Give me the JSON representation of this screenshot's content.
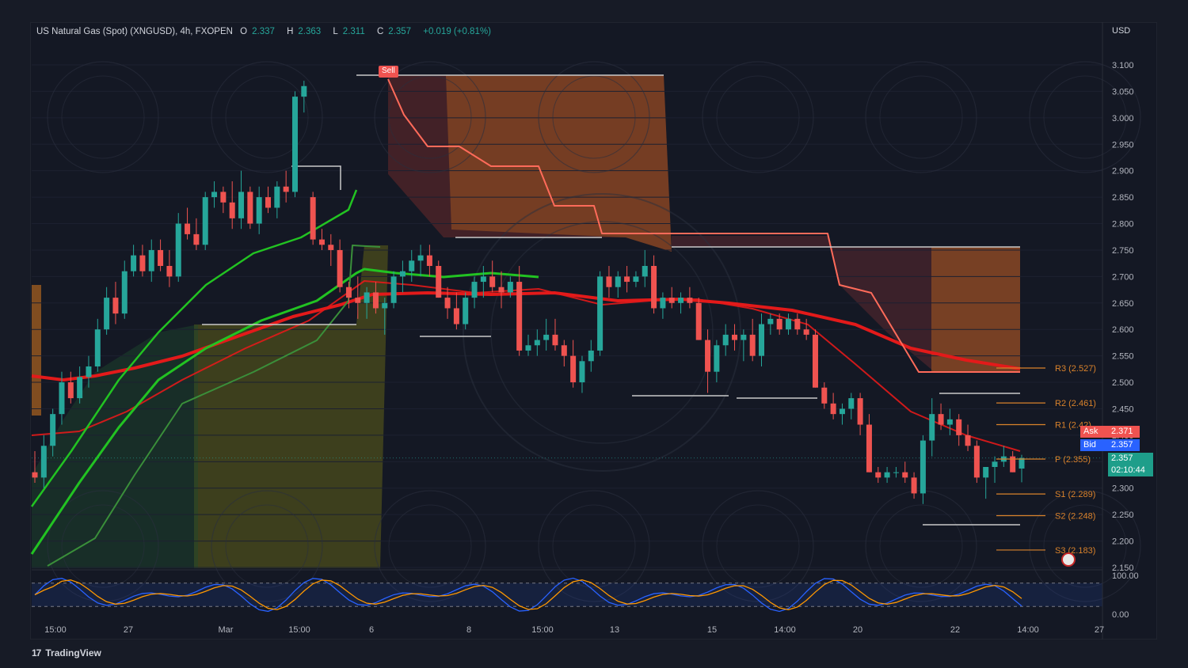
{
  "header": {
    "symbol": "US Natural Gas (Spot) (XNGUSD), 4h, FXOPEN",
    "open_label": "O",
    "open": "2.337",
    "high_label": "H",
    "high": "2.363",
    "low_label": "L",
    "low": "2.311",
    "close_label": "C",
    "close": "2.357",
    "change": "+0.019 (+0.81%)"
  },
  "unit": "USD",
  "footer": {
    "logo_mark": "17",
    "logo_text": "TradingView"
  },
  "tags": {
    "ask_label": "Ask",
    "ask": "2.371",
    "bid_label": "Bid",
    "bid": "2.357",
    "last": "2.357",
    "countdown": "02:10:44",
    "sell": "Sell"
  },
  "colors": {
    "up": "#26a69a",
    "down": "#ef5350",
    "background": "#141824",
    "ema_green": "#22c322",
    "ema_red": "#e31a1a",
    "pivot": "#d9822b",
    "stoch_k": "#2962ff",
    "stoch_d": "#ff9800"
  },
  "chart_data": {
    "type": "candlestick",
    "y_ticks": [
      "3.100",
      "3.050",
      "3.000",
      "2.950",
      "2.900",
      "2.850",
      "2.800",
      "2.750",
      "2.700",
      "2.650",
      "2.600",
      "2.550",
      "2.500",
      "2.450",
      "2.400",
      "2.350",
      "2.300",
      "2.250",
      "2.200",
      "2.150"
    ],
    "ylim": [
      2.14,
      3.14
    ],
    "x_ticks": [
      "15:00",
      "27",
      "Mar",
      "15:00",
      "6",
      "8",
      "15:00",
      "13",
      "15",
      "14:00",
      "20",
      "22",
      "14:00",
      "27"
    ],
    "candles": [
      [
        2.33,
        2.37,
        2.31,
        2.32
      ],
      [
        2.32,
        2.4,
        2.3,
        2.38
      ],
      [
        2.38,
        2.45,
        2.36,
        2.44
      ],
      [
        2.44,
        2.52,
        2.42,
        2.5
      ],
      [
        2.5,
        2.52,
        2.46,
        2.47
      ],
      [
        2.47,
        2.53,
        2.46,
        2.51
      ],
      [
        2.51,
        2.55,
        2.49,
        2.53
      ],
      [
        2.53,
        2.62,
        2.52,
        2.6
      ],
      [
        2.6,
        2.68,
        2.59,
        2.66
      ],
      [
        2.66,
        2.69,
        2.61,
        2.63
      ],
      [
        2.63,
        2.73,
        2.62,
        2.71
      ],
      [
        2.71,
        2.76,
        2.7,
        2.74
      ],
      [
        2.74,
        2.76,
        2.7,
        2.71
      ],
      [
        2.71,
        2.77,
        2.69,
        2.75
      ],
      [
        2.75,
        2.77,
        2.71,
        2.72
      ],
      [
        2.72,
        2.75,
        2.68,
        2.7
      ],
      [
        2.7,
        2.82,
        2.69,
        2.8
      ],
      [
        2.8,
        2.83,
        2.77,
        2.78
      ],
      [
        2.78,
        2.81,
        2.75,
        2.76
      ],
      [
        2.76,
        2.86,
        2.75,
        2.85
      ],
      [
        2.85,
        2.88,
        2.83,
        2.86
      ],
      [
        2.86,
        2.87,
        2.82,
        2.84
      ],
      [
        2.84,
        2.88,
        2.79,
        2.81
      ],
      [
        2.81,
        2.9,
        2.79,
        2.86
      ],
      [
        2.86,
        2.87,
        2.79,
        2.8
      ],
      [
        2.8,
        2.87,
        2.78,
        2.85
      ],
      [
        2.85,
        2.87,
        2.82,
        2.83
      ],
      [
        2.83,
        2.88,
        2.81,
        2.87
      ],
      [
        2.87,
        2.9,
        2.84,
        2.86
      ],
      [
        2.86,
        3.05,
        2.85,
        3.04
      ],
      [
        3.04,
        3.07,
        3.01,
        3.06
      ],
      [
        2.85,
        2.86,
        2.76,
        2.77
      ],
      [
        2.77,
        2.79,
        2.75,
        2.76
      ],
      [
        2.76,
        2.78,
        2.72,
        2.75
      ],
      [
        2.75,
        2.77,
        2.67,
        2.68
      ],
      [
        2.68,
        2.69,
        2.64,
        2.66
      ],
      [
        2.66,
        2.7,
        2.62,
        2.65
      ],
      [
        2.65,
        2.68,
        2.62,
        2.67
      ],
      [
        2.67,
        2.69,
        2.63,
        2.64
      ],
      [
        2.64,
        2.66,
        2.59,
        2.65
      ],
      [
        2.65,
        2.71,
        2.64,
        2.7
      ],
      [
        2.7,
        2.73,
        2.67,
        2.71
      ],
      [
        2.71,
        2.75,
        2.69,
        2.73
      ],
      [
        2.73,
        2.76,
        2.7,
        2.74
      ],
      [
        2.74,
        2.76,
        2.7,
        2.72
      ],
      [
        2.72,
        2.73,
        2.66,
        2.66
      ],
      [
        2.66,
        2.68,
        2.62,
        2.64
      ],
      [
        2.64,
        2.67,
        2.6,
        2.61
      ],
      [
        2.61,
        2.67,
        2.6,
        2.66
      ],
      [
        2.66,
        2.7,
        2.64,
        2.69
      ],
      [
        2.69,
        2.72,
        2.66,
        2.7
      ],
      [
        2.7,
        2.73,
        2.67,
        2.68
      ],
      [
        2.68,
        2.71,
        2.64,
        2.67
      ],
      [
        2.67,
        2.7,
        2.66,
        2.69
      ],
      [
        2.69,
        2.72,
        2.55,
        2.56
      ],
      [
        2.56,
        2.59,
        2.55,
        2.57
      ],
      [
        2.57,
        2.6,
        2.55,
        2.58
      ],
      [
        2.58,
        2.62,
        2.56,
        2.59
      ],
      [
        2.59,
        2.62,
        2.56,
        2.57
      ],
      [
        2.57,
        2.58,
        2.53,
        2.55
      ],
      [
        2.55,
        2.58,
        2.49,
        2.5
      ],
      [
        2.5,
        2.55,
        2.48,
        2.54
      ],
      [
        2.54,
        2.58,
        2.52,
        2.56
      ],
      [
        2.56,
        2.71,
        2.55,
        2.7
      ],
      [
        2.7,
        2.72,
        2.66,
        2.68
      ],
      [
        2.68,
        2.71,
        2.66,
        2.7
      ],
      [
        2.7,
        2.72,
        2.67,
        2.69
      ],
      [
        2.69,
        2.71,
        2.68,
        2.7
      ],
      [
        2.7,
        2.75,
        2.68,
        2.72
      ],
      [
        2.72,
        2.74,
        2.63,
        2.64
      ],
      [
        2.64,
        2.67,
        2.62,
        2.66
      ],
      [
        2.66,
        2.68,
        2.64,
        2.65
      ],
      [
        2.65,
        2.67,
        2.63,
        2.66
      ],
      [
        2.66,
        2.68,
        2.64,
        2.65
      ],
      [
        2.65,
        2.66,
        2.58,
        2.58
      ],
      [
        2.58,
        2.6,
        2.48,
        2.52
      ],
      [
        2.52,
        2.58,
        2.5,
        2.57
      ],
      [
        2.57,
        2.61,
        2.55,
        2.59
      ],
      [
        2.59,
        2.61,
        2.56,
        2.58
      ],
      [
        2.58,
        2.6,
        2.54,
        2.59
      ],
      [
        2.59,
        2.62,
        2.54,
        2.55
      ],
      [
        2.55,
        2.63,
        2.53,
        2.61
      ],
      [
        2.61,
        2.63,
        2.59,
        2.62
      ],
      [
        2.62,
        2.63,
        2.59,
        2.6
      ],
      [
        2.6,
        2.63,
        2.59,
        2.62
      ],
      [
        2.62,
        2.63,
        2.59,
        2.6
      ],
      [
        2.6,
        2.62,
        2.58,
        2.59
      ],
      [
        2.59,
        2.6,
        2.49,
        2.49
      ],
      [
        2.49,
        2.5,
        2.45,
        2.46
      ],
      [
        2.46,
        2.48,
        2.43,
        2.44
      ],
      [
        2.44,
        2.46,
        2.42,
        2.45
      ],
      [
        2.45,
        2.48,
        2.43,
        2.47
      ],
      [
        2.47,
        2.48,
        2.4,
        2.42
      ],
      [
        2.42,
        2.44,
        2.33,
        2.33
      ],
      [
        2.33,
        2.34,
        2.31,
        2.32
      ],
      [
        2.32,
        2.34,
        2.31,
        2.33
      ],
      [
        2.33,
        2.34,
        2.32,
        2.33
      ],
      [
        2.33,
        2.35,
        2.31,
        2.32
      ],
      [
        2.32,
        2.33,
        2.28,
        2.29
      ],
      [
        2.29,
        2.4,
        2.27,
        2.39
      ],
      [
        2.39,
        2.47,
        2.36,
        2.44
      ],
      [
        2.44,
        2.46,
        2.41,
        2.42
      ],
      [
        2.42,
        2.45,
        2.4,
        2.43
      ],
      [
        2.43,
        2.44,
        2.38,
        2.4
      ],
      [
        2.4,
        2.42,
        2.37,
        2.38
      ],
      [
        2.38,
        2.39,
        2.31,
        2.32
      ],
      [
        2.32,
        2.34,
        2.28,
        2.34
      ],
      [
        2.34,
        2.36,
        2.31,
        2.35
      ],
      [
        2.35,
        2.38,
        2.34,
        2.36
      ],
      [
        2.36,
        2.37,
        2.33,
        2.33
      ],
      [
        2.337,
        2.363,
        2.311,
        2.357
      ]
    ],
    "pivots": [
      {
        "label": "R3 (2.527)",
        "value": 2.527
      },
      {
        "label": "R2 (2.461)",
        "value": 2.461
      },
      {
        "label": "R1 (2.42)",
        "value": 2.42
      },
      {
        "label": "P (2.355)",
        "value": 2.355
      },
      {
        "label": "S1 (2.289)",
        "value": 2.289
      },
      {
        "label": "S2 (2.248)",
        "value": 2.248
      },
      {
        "label": "S3 (2.183)",
        "value": 2.183
      }
    ],
    "stochastic": {
      "y_ticks": [
        "100.00",
        "0.00"
      ],
      "upper": 80,
      "lower": 20
    }
  }
}
